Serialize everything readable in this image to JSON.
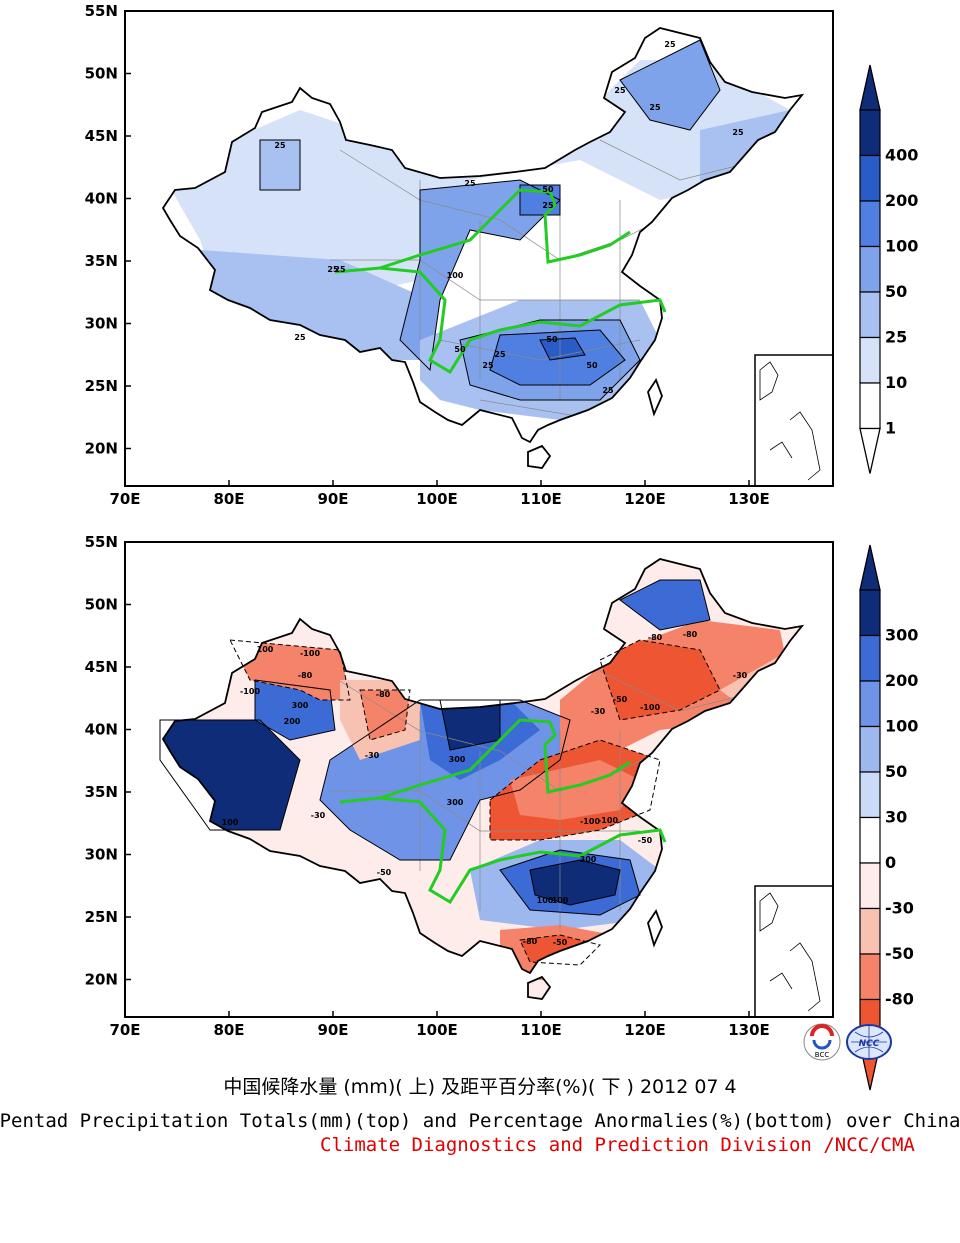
{
  "colors": {
    "province_border": "#8a8a8a",
    "country_border": "#000000",
    "river": "#22cc22",
    "positive_scale": [
      "#ffffff",
      "#d6e2f8",
      "#a9c1f1",
      "#7fa3ea",
      "#4f7fe0",
      "#2a5cc8",
      "#0e2c78"
    ],
    "diverging_scale": [
      "#ee5533",
      "#f4836a",
      "#f8c2b2",
      "#fdecea",
      "#ffffff",
      "#cbdaf6",
      "#9db7ef",
      "#6f93e6",
      "#3c6bd6",
      "#0e2c78"
    ]
  },
  "top_map": {
    "lat_ticks": [
      "55N",
      "50N",
      "45N",
      "40N",
      "35N",
      "30N",
      "25N",
      "20N"
    ],
    "lon_ticks": [
      "70E",
      "80E",
      "90E",
      "100E",
      "110E",
      "120E",
      "130E"
    ],
    "colorbar": [
      "400",
      "200",
      "100",
      "50",
      "25",
      "10",
      "1"
    ],
    "contour_labels": [
      "25",
      "25",
      "25",
      "25",
      "25",
      "25",
      "50",
      "25",
      "25",
      "25",
      "100",
      "50",
      "50",
      "25",
      "25",
      "25",
      "25",
      "50"
    ]
  },
  "bottom_map": {
    "lat_ticks": [
      "55N",
      "50N",
      "45N",
      "40N",
      "35N",
      "30N",
      "25N",
      "20N"
    ],
    "lon_ticks": [
      "70E",
      "80E",
      "90E",
      "100E",
      "110E",
      "120E",
      "130E"
    ],
    "colorbar": [
      "300",
      "200",
      "100",
      "50",
      "30",
      "0",
      "-30",
      "-50",
      "-80"
    ],
    "contour_labels": [
      "-100",
      "-80",
      "100",
      "300",
      "200",
      "-100",
      "-80",
      "300",
      "300",
      "100",
      "-30",
      "-30",
      "-50",
      "-100",
      "-80",
      "-30",
      "-50",
      "-100",
      "100",
      "300",
      "100",
      "-80",
      "-80",
      "-30",
      "-100",
      "-50",
      "-50"
    ]
  },
  "logos": {
    "bcc": "BCC",
    "ncc": "NCC"
  },
  "caption": {
    "chinese": "中国候降水量 (mm)( 上) 及距平百分率(%)( 下 ) 2012 07 4",
    "english": "Pentad Precipitation Totals(mm)(top) and Percentage Anormalies(%)(bottom) over China",
    "organization": "Climate Diagnostics and Prediction Division /NCC/CMA"
  }
}
